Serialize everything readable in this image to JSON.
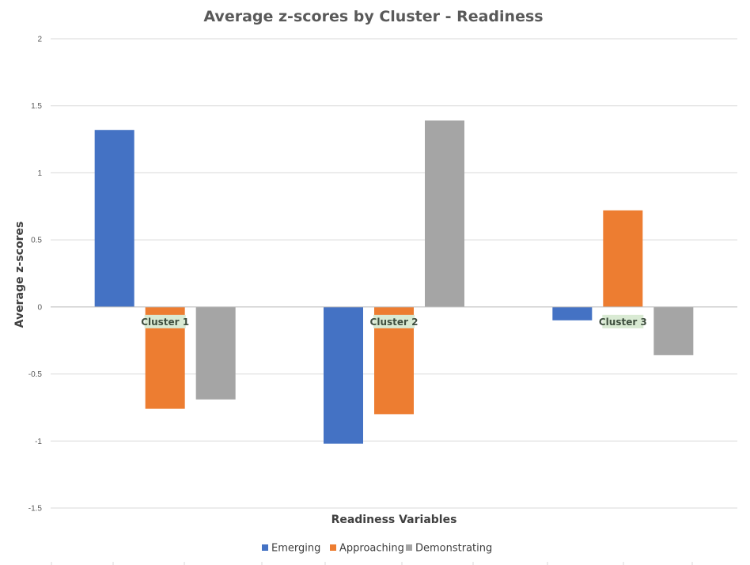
{
  "chart_data": {
    "type": "bar",
    "title": "Average z-scores by Cluster - Readiness",
    "xlabel": "Readiness Variables",
    "ylabel": "Average z-scores",
    "categories": [
      "Cluster 1",
      "Cluster 2",
      "Cluster 3"
    ],
    "series": [
      {
        "name": "Emerging",
        "color": "#4472C4",
        "values": [
          1.32,
          -1.02,
          -0.1
        ]
      },
      {
        "name": "Approaching",
        "color": "#ED7D31",
        "values": [
          -0.76,
          -0.8,
          0.72
        ]
      },
      {
        "name": "Demonstrating",
        "color": "#A5A5A5",
        "values": [
          -0.69,
          1.39,
          -0.36
        ]
      }
    ],
    "ylim": [
      -1.5,
      2
    ],
    "yticks": [
      "2",
      "1.5",
      "1",
      "0.5",
      "0",
      "-0.5",
      "-1",
      "-1.5"
    ],
    "ytick_values": [
      2,
      1.5,
      1,
      0.5,
      0,
      -0.5,
      -1,
      -1.5
    ],
    "grid": true,
    "legend": "bottom",
    "category_label_bg": "#D9EAD3"
  }
}
